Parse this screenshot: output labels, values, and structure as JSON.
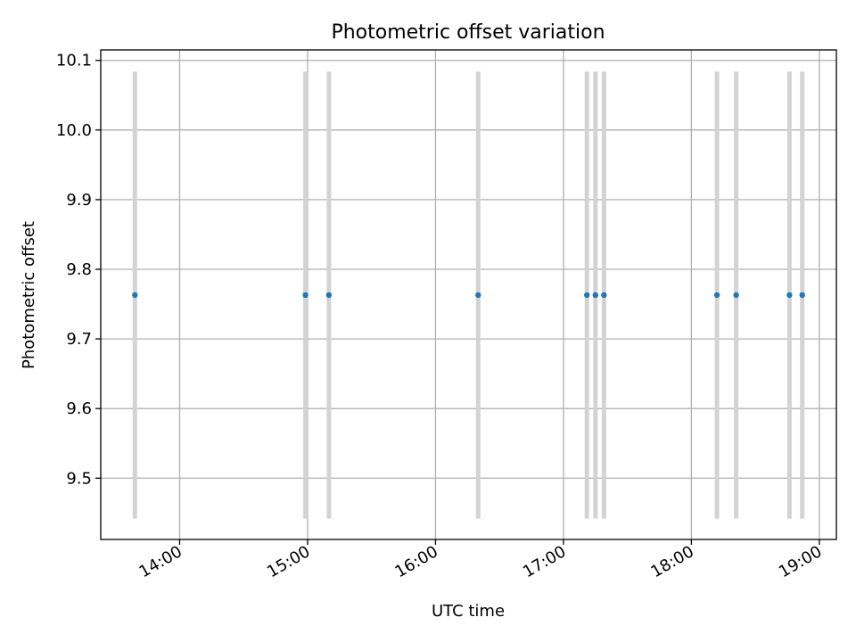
{
  "chart_data": {
    "type": "scatter",
    "title": "Photometric offset variation",
    "xlabel": "UTC time",
    "ylabel": "Photometric offset",
    "x_ticks": [
      "14:00",
      "15:00",
      "16:00",
      "17:00",
      "18:00",
      "19:00"
    ],
    "y_ticks": [
      "9.5",
      "9.6",
      "9.7",
      "9.8",
      "9.9",
      "10.0",
      "10.1"
    ],
    "xlim": [
      "13:23",
      "19:08"
    ],
    "ylim": [
      9.412,
      10.115
    ],
    "grid": true,
    "series": [
      {
        "x": [
          "13:39",
          "14:59",
          "15:10",
          "16:20",
          "17:11",
          "17:15",
          "17:19",
          "18:12",
          "18:21",
          "18:46",
          "18:52"
        ],
        "y": [
          9.763,
          9.763,
          9.763,
          9.763,
          9.763,
          9.763,
          9.763,
          9.763,
          9.763,
          9.763,
          9.763
        ],
        "y_lower": [
          9.442,
          9.442,
          9.442,
          9.442,
          9.442,
          9.442,
          9.442,
          9.442,
          9.442,
          9.442,
          9.442
        ],
        "y_upper": [
          10.084,
          10.084,
          10.084,
          10.084,
          10.084,
          10.084,
          10.084,
          10.084,
          10.084,
          10.084,
          10.084
        ],
        "color": "#1f77b4",
        "errorbar_color": "#d3d3d3"
      }
    ]
  }
}
